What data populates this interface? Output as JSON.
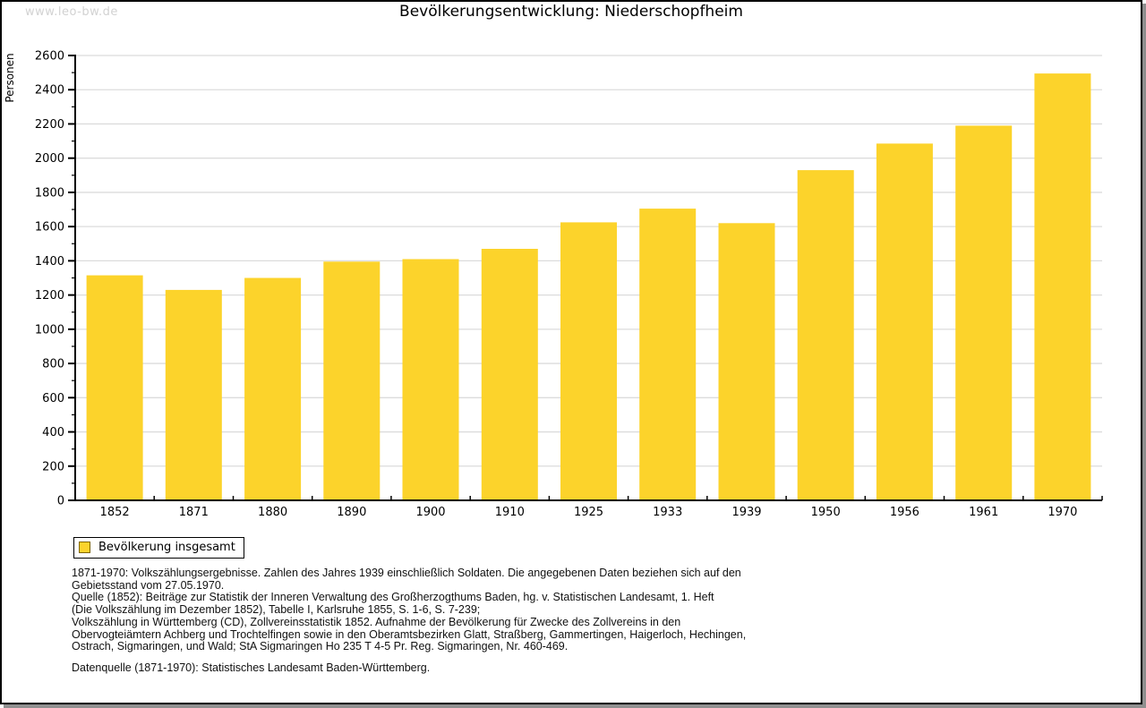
{
  "watermark": "www.leo-bw.de",
  "title": "Bevölkerungsentwicklung: Niederschopfheim",
  "legend": {
    "label": "Bevölkerung insgesamt"
  },
  "footnotes": [
    "1871-1970: Volkszählungsergebnisse. Zahlen des Jahres 1939 einschließlich Soldaten. Die angegebenen Daten beziehen sich auf den",
    "Gebietsstand vom 27.05.1970.",
    "Quelle (1852): Beiträge zur Statistik der Inneren Verwaltung des Großherzogthums Baden, hg. v. Statistischen Landesamt, 1. Heft",
    "(Die Volkszählung im Dezember 1852), Tabelle I, Karlsruhe 1855, S. 1-6, S. 7-239;",
    "Volkszählung in Württemberg (CD), Zollvereinsstatistik 1852. Aufnahme der Bevölkerung für Zwecke des Zollvereins in den",
    "Obervogteiämtern Achberg und Trochtelfingen sowie in den Oberamtsbezirken Glatt, Straßberg, Gammertingen, Haigerloch, Hechingen,",
    "Ostrach, Sigmaringen, und Wald; StA Sigmaringen Ho 235 T 4-5 Pr. Reg. Sigmaringen, Nr. 460-469."
  ],
  "datasource": "Datenquelle (1871-1970): Statistisches Landesamt Baden-Württemberg.",
  "chart_data": {
    "type": "bar",
    "title": "Bevölkerungsentwicklung: Niederschopfheim",
    "categories": [
      "1852",
      "1871",
      "1880",
      "1890",
      "1900",
      "1910",
      "1925",
      "1933",
      "1939",
      "1950",
      "1956",
      "1961",
      "1970"
    ],
    "values": [
      1315,
      1230,
      1300,
      1395,
      1410,
      1470,
      1625,
      1705,
      1620,
      1930,
      2085,
      2190,
      2495
    ],
    "series_name": "Bevölkerung insgesamt",
    "xlabel": "",
    "ylabel": "Personen",
    "ylim": [
      0,
      2600
    ],
    "ytick_step": 200,
    "minor_tick_step": 100,
    "grid": true,
    "legend_position": "bottom-left",
    "bar_color": "#FCD32B",
    "grid_color": "#DCDCDC",
    "axis_color": "#000000"
  }
}
